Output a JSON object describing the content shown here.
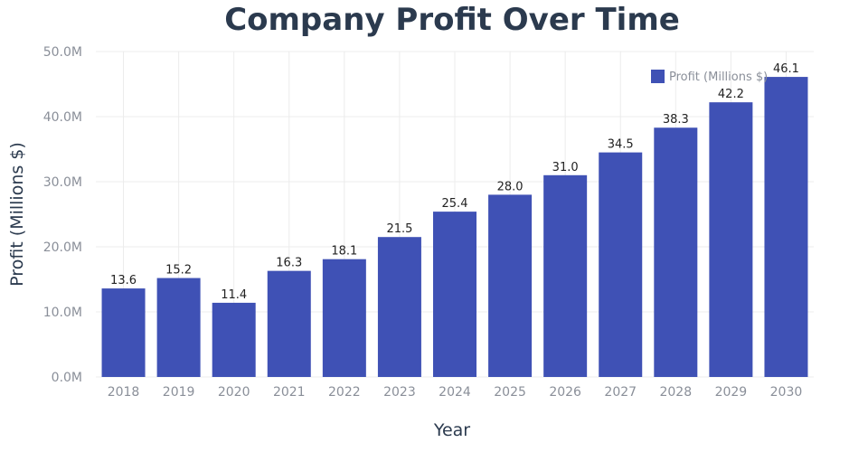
{
  "chart_data": {
    "type": "bar",
    "title": "Company Profit Over Time",
    "xlabel": "Year",
    "ylabel": "Profit (Millions $)",
    "categories": [
      "2018",
      "2019",
      "2020",
      "2021",
      "2022",
      "2023",
      "2024",
      "2025",
      "2026",
      "2027",
      "2028",
      "2029",
      "2030"
    ],
    "series": [
      {
        "name": "Profit (Millions $)",
        "values": [
          13.6,
          15.2,
          11.4,
          16.3,
          18.1,
          21.5,
          25.4,
          28.0,
          31.0,
          34.5,
          38.3,
          42.2,
          46.1
        ],
        "value_labels": [
          "13.6",
          "15.2",
          "11.4",
          "16.3",
          "18.1",
          "21.5",
          "25.4",
          "28.0",
          "31.0",
          "34.5",
          "38.3",
          "42.2",
          "46.1"
        ],
        "color": "#3f51b5"
      }
    ],
    "ylim": [
      0,
      50
    ],
    "yticks": [
      0,
      10,
      20,
      30,
      40,
      50
    ],
    "ytick_labels": [
      "0.0M",
      "10.0M",
      "20.0M",
      "30.0M",
      "40.0M",
      "50.0M"
    ],
    "grid": true,
    "legend_position": "top-right"
  }
}
